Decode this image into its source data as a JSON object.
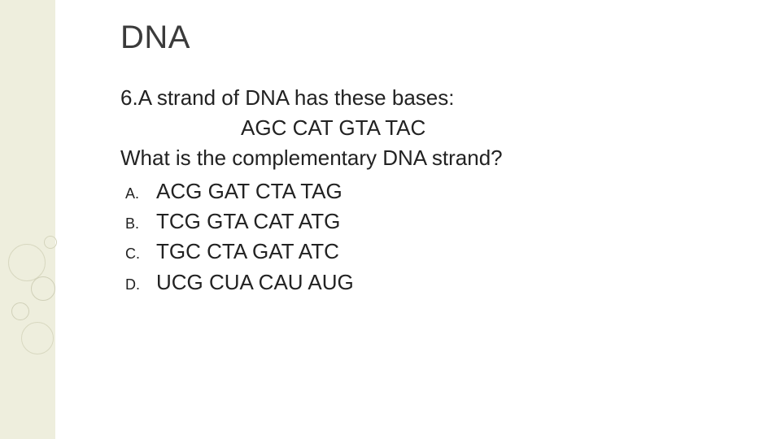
{
  "slide": {
    "title": "DNA",
    "question_number": "6.",
    "question_line1": "A strand of DNA has these bases:",
    "sequence": "AGC CAT GTA TAC",
    "question_line2": "What is the complementary DNA strand?",
    "options": [
      {
        "letter": "A.",
        "text": "ACG GAT CTA TAG"
      },
      {
        "letter": "B.",
        "text": "TCG GTA CAT ATG"
      },
      {
        "letter": "C.",
        "text": "TGC CTA GAT ATC"
      },
      {
        "letter": "D.",
        "text": "UCG CUA CAU AUG"
      }
    ]
  },
  "style": {
    "background_color": "#ffffff",
    "band_color": "#eeeedd",
    "title_color": "#3b3b3b",
    "body_color": "#222222",
    "title_fontsize": 40,
    "body_fontsize": 26,
    "option_letter_fontsize": 18,
    "circle_border_color": "#d8d8c0"
  }
}
